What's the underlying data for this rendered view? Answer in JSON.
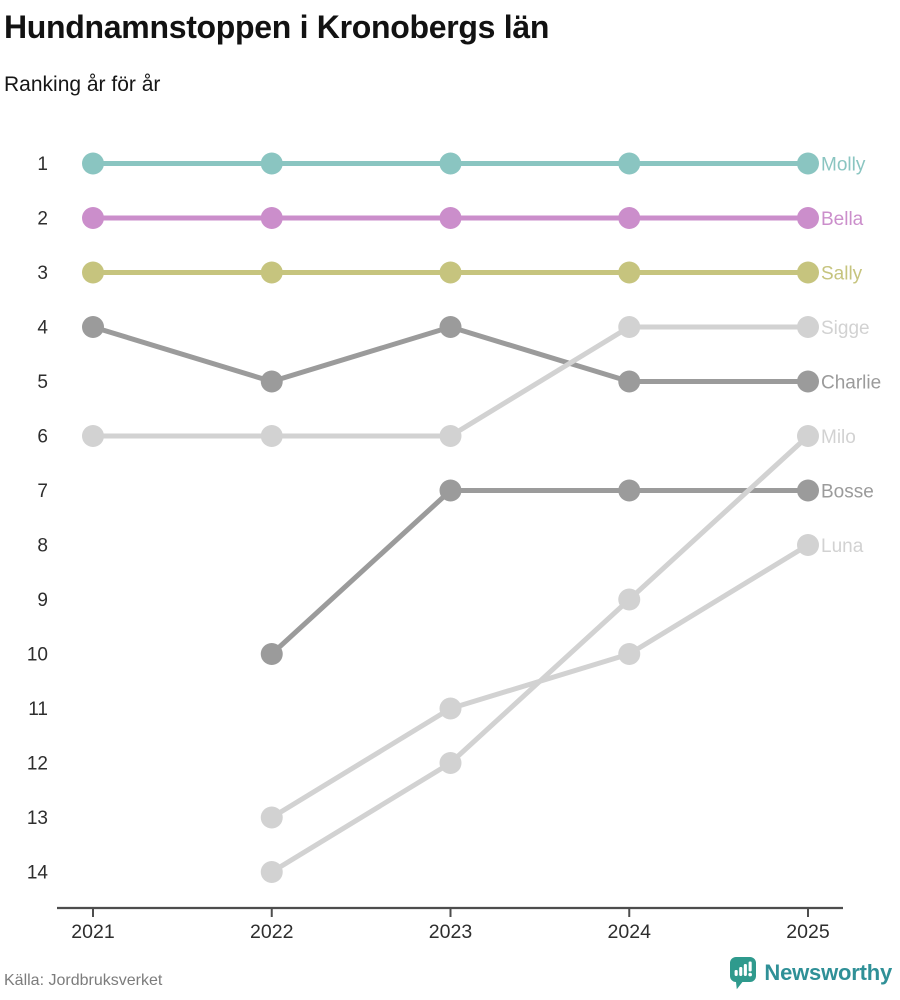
{
  "header": {
    "title": "Hundnamnstoppen i Kronobergs län",
    "subtitle": "Ranking år för år"
  },
  "footer": {
    "source": "Källa: Jordbruksverket",
    "brand": "Newsworthy"
  },
  "colors": {
    "teal": "#8ac5c1",
    "orchid": "#cb8ecb",
    "khaki": "#c6c47e",
    "dark_gray": "#9b9b9b",
    "light_gray": "#d2d2d2",
    "axis": "#4d4d4d",
    "tick_text": "#2e2e2e",
    "brand_icon": "#2f9a8d",
    "brand_text": "#2f9097"
  },
  "chart_data": {
    "type": "line",
    "variant": "bump-ranking",
    "title": "Hundnamnstoppen i Kronobergs län",
    "subtitle": "Ranking år för år",
    "xlabel": "",
    "ylabel": "",
    "x": [
      2021,
      2022,
      2023,
      2024,
      2025
    ],
    "yticks": [
      1,
      2,
      3,
      4,
      5,
      6,
      7,
      8,
      9,
      10,
      11,
      12,
      13,
      14
    ],
    "ylim": [
      1,
      14
    ],
    "y_inverted": true,
    "grid": false,
    "legend_position": "right-of-last-point",
    "series": [
      {
        "name": "Molly",
        "color": "#8ac5c1",
        "values": [
          1,
          1,
          1,
          1,
          1
        ]
      },
      {
        "name": "Bella",
        "color": "#cb8ecb",
        "values": [
          2,
          2,
          2,
          2,
          2
        ]
      },
      {
        "name": "Sally",
        "color": "#c6c47e",
        "values": [
          3,
          3,
          3,
          3,
          3
        ]
      },
      {
        "name": "Sigge",
        "color": "#d2d2d2",
        "values": [
          6,
          6,
          6,
          4,
          4
        ]
      },
      {
        "name": "Charlie",
        "color": "#9b9b9b",
        "values": [
          4,
          5,
          4,
          5,
          5
        ]
      },
      {
        "name": "Milo",
        "color": "#d2d2d2",
        "values": [
          null,
          14,
          12,
          9,
          6
        ]
      },
      {
        "name": "Bosse",
        "color": "#9b9b9b",
        "values": [
          null,
          10,
          7,
          7,
          7
        ]
      },
      {
        "name": "Luna",
        "color": "#d2d2d2",
        "values": [
          null,
          13,
          11,
          10,
          8
        ]
      }
    ],
    "draw_order": [
      "Luna",
      "Bosse",
      "Milo",
      "Charlie",
      "Sigge",
      "Sally",
      "Bella",
      "Molly"
    ]
  }
}
